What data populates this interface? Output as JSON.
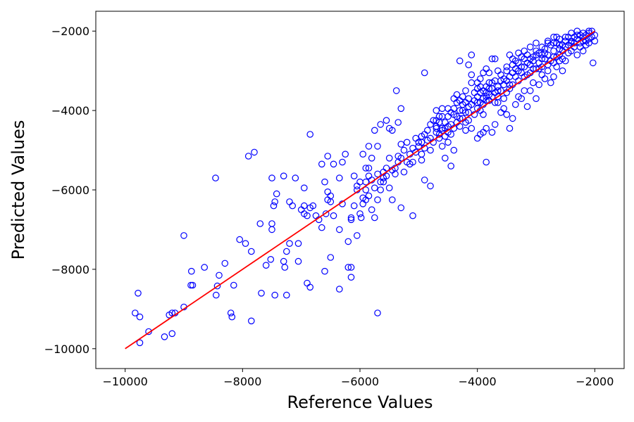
{
  "chart_data": {
    "type": "scatter",
    "title": "",
    "xlabel": "Reference Values",
    "ylabel": "Predicted Values",
    "xlim": [
      -10500,
      -1500
    ],
    "ylim": [
      -10500,
      -1500
    ],
    "xticks": [
      -10000,
      -8000,
      -6000,
      -4000,
      -2000
    ],
    "yticks": [
      -10000,
      -8000,
      -6000,
      -4000,
      -2000
    ],
    "xtick_labels": [
      "−10000",
      "−8000",
      "−6000",
      "−4000",
      "−2000"
    ],
    "ytick_labels": [
      "−10000",
      "−8000",
      "−6000",
      "−4000",
      "−2000"
    ],
    "grid": false,
    "marker_color": "#0000ff",
    "line_color": "#ff0000",
    "fit_line": {
      "x": [
        -10000,
        -2000
      ],
      "y": [
        -10000,
        -2000
      ]
    },
    "points": [
      [
        -9750,
        -9850
      ],
      [
        -9830,
        -9100
      ],
      [
        -9750,
        -9200
      ],
      [
        -9780,
        -8600
      ],
      [
        -9600,
        -9570
      ],
      [
        -9330,
        -9700
      ],
      [
        -9200,
        -9620
      ],
      [
        -9250,
        -9150
      ],
      [
        -9200,
        -9100
      ],
      [
        -9150,
        -9100
      ],
      [
        -9000,
        -8950
      ],
      [
        -9000,
        -7150
      ],
      [
        -8880,
        -8400
      ],
      [
        -8850,
        -8400
      ],
      [
        -8870,
        -8050
      ],
      [
        -8650,
        -7950
      ],
      [
        -8450,
        -8650
      ],
      [
        -8430,
        -8420
      ],
      [
        -8400,
        -8150
      ],
      [
        -8300,
        -7850
      ],
      [
        -8460,
        -5700
      ],
      [
        -8200,
        -9100
      ],
      [
        -8180,
        -9200
      ],
      [
        -8150,
        -8400
      ],
      [
        -8050,
        -7250
      ],
      [
        -7950,
        -7350
      ],
      [
        -7850,
        -7550
      ],
      [
        -7900,
        -5150
      ],
      [
        -7800,
        -5050
      ],
      [
        -7850,
        -9300
      ],
      [
        -7680,
        -8600
      ],
      [
        -7700,
        -6850
      ],
      [
        -7600,
        -7900
      ],
      [
        -7520,
        -7750
      ],
      [
        -7500,
        -7000
      ],
      [
        -7500,
        -6850
      ],
      [
        -7470,
        -6400
      ],
      [
        -7450,
        -6300
      ],
      [
        -7420,
        -6100
      ],
      [
        -7500,
        -5700
      ],
      [
        -7450,
        -8650
      ],
      [
        -7300,
        -7800
      ],
      [
        -7280,
        -7950
      ],
      [
        -7250,
        -7550
      ],
      [
        -7200,
        -7350
      ],
      [
        -7200,
        -6300
      ],
      [
        -7150,
        -6400
      ],
      [
        -7100,
        -5700
      ],
      [
        -7300,
        -5650
      ],
      [
        -7250,
        -8650
      ],
      [
        -7050,
        -7350
      ],
      [
        -7050,
        -7800
      ],
      [
        -7000,
        -6500
      ],
      [
        -6950,
        -6400
      ],
      [
        -6950,
        -6600
      ],
      [
        -6900,
        -6650
      ],
      [
        -6950,
        -5950
      ],
      [
        -6900,
        -8350
      ],
      [
        -6850,
        -8450
      ],
      [
        -6800,
        -6400
      ],
      [
        -6850,
        -6450
      ],
      [
        -6750,
        -6650
      ],
      [
        -6700,
        -6750
      ],
      [
        -6650,
        -6950
      ],
      [
        -6850,
        -4600
      ],
      [
        -6600,
        -8050
      ],
      [
        -6580,
        -6600
      ],
      [
        -6550,
        -6250
      ],
      [
        -6500,
        -6300
      ],
      [
        -6500,
        -6150
      ],
      [
        -6550,
        -6050
      ],
      [
        -6600,
        -5800
      ],
      [
        -6450,
        -5350
      ],
      [
        -6650,
        -5350
      ],
      [
        -6550,
        -5150
      ],
      [
        -6450,
        -6650
      ],
      [
        -6500,
        -7700
      ],
      [
        -6350,
        -7000
      ],
      [
        -6300,
        -6350
      ],
      [
        -6350,
        -5700
      ],
      [
        -6300,
        -5300
      ],
      [
        -6250,
        -5100
      ],
      [
        -6200,
        -7300
      ],
      [
        -6150,
        -6750
      ],
      [
        -6150,
        -6700
      ],
      [
        -6100,
        -6400
      ],
      [
        -6100,
        -5650
      ],
      [
        -6050,
        -6000
      ],
      [
        -6050,
        -7150
      ],
      [
        -6000,
        -6600
      ],
      [
        -5980,
        -6700
      ],
      [
        -5950,
        -6350
      ],
      [
        -5950,
        -6200
      ],
      [
        -5900,
        -6000
      ],
      [
        -5900,
        -5800
      ],
      [
        -5850,
        -5650
      ],
      [
        -6050,
        -5900
      ],
      [
        -6200,
        -7950
      ],
      [
        -6150,
        -7950
      ],
      [
        -6150,
        -8200
      ],
      [
        -6350,
        -8500
      ],
      [
        -5950,
        -5100
      ],
      [
        -5850,
        -4900
      ],
      [
        -5800,
        -6500
      ],
      [
        -5750,
        -6700
      ],
      [
        -5700,
        -6250
      ],
      [
        -5650,
        -6000
      ],
      [
        -5600,
        -5800
      ],
      [
        -5600,
        -5700
      ],
      [
        -5550,
        -5450
      ],
      [
        -5500,
        -5950
      ],
      [
        -5450,
        -6250
      ],
      [
        -5400,
        -5600
      ],
      [
        -5350,
        -5300
      ],
      [
        -5300,
        -5200
      ],
      [
        -5300,
        -6450
      ],
      [
        -5250,
        -5550
      ],
      [
        -5200,
        -5300
      ],
      [
        -5150,
        -5100
      ],
      [
        -5100,
        -4950
      ],
      [
        -5100,
        -6650
      ],
      [
        -5700,
        -9100
      ],
      [
        -5450,
        -4500
      ],
      [
        -5350,
        -4300
      ],
      [
        -5500,
        -4450
      ],
      [
        -5300,
        -3950
      ],
      [
        -5380,
        -3500
      ],
      [
        -5650,
        -4350
      ],
      [
        -5550,
        -4250
      ],
      [
        -5700,
        -4900
      ],
      [
        -5750,
        -4500
      ],
      [
        -5800,
        -5200
      ],
      [
        -5850,
        -5450
      ],
      [
        -5900,
        -5450
      ],
      [
        -6000,
        -5800
      ],
      [
        -5050,
        -5050
      ],
      [
        -5000,
        -4900
      ],
      [
        -4950,
        -4800
      ],
      [
        -4950,
        -5100
      ],
      [
        -4900,
        -4950
      ],
      [
        -4850,
        -4750
      ],
      [
        -4800,
        -4700
      ],
      [
        -4800,
        -5000
      ],
      [
        -4750,
        -4800
      ],
      [
        -4700,
        -4550
      ],
      [
        -4650,
        -4700
      ],
      [
        -4600,
        -4450
      ],
      [
        -4600,
        -4900
      ],
      [
        -4550,
        -5200
      ],
      [
        -4500,
        -4800
      ],
      [
        -4500,
        -4400
      ],
      [
        -4450,
        -4600
      ],
      [
        -4450,
        -5400
      ],
      [
        -4400,
        -5000
      ],
      [
        -4400,
        -4450
      ],
      [
        -4350,
        -4300
      ],
      [
        -4300,
        -4200
      ],
      [
        -4300,
        -3750
      ],
      [
        -4250,
        -4000
      ],
      [
        -4200,
        -4300
      ],
      [
        -4200,
        -4050
      ],
      [
        -4150,
        -3900
      ],
      [
        -4150,
        -3700
      ],
      [
        -4100,
        -4450
      ],
      [
        -4050,
        -4100
      ],
      [
        -4000,
        -3950
      ],
      [
        -4000,
        -3650
      ],
      [
        -3950,
        -3800
      ],
      [
        -3950,
        -3550
      ],
      [
        -3900,
        -3700
      ],
      [
        -3900,
        -3500
      ],
      [
        -3850,
        -3400
      ],
      [
        -3800,
        -3600
      ],
      [
        -3800,
        -3300
      ],
      [
        -3750,
        -3450
      ],
      [
        -3700,
        -3250
      ],
      [
        -4900,
        -3050
      ],
      [
        -4950,
        -5250
      ],
      [
        -4900,
        -5750
      ],
      [
        -4800,
        -5900
      ],
      [
        -4700,
        -4000
      ],
      [
        -4650,
        -4150
      ],
      [
        -4700,
        -4400
      ],
      [
        -4600,
        -3950
      ],
      [
        -4550,
        -4300
      ],
      [
        -4500,
        -4150
      ],
      [
        -4400,
        -3950
      ],
      [
        -4350,
        -3600
      ],
      [
        -4300,
        -2750
      ],
      [
        -4250,
        -3650
      ],
      [
        -4200,
        -3500
      ],
      [
        -4150,
        -2850
      ],
      [
        -4100,
        -3100
      ],
      [
        -4100,
        -2600
      ],
      [
        -4000,
        -3450
      ],
      [
        -4000,
        -3300
      ],
      [
        -3950,
        -3200
      ],
      [
        -3900,
        -3050
      ],
      [
        -3850,
        -2950
      ],
      [
        -3850,
        -3650
      ],
      [
        -3800,
        -3050
      ],
      [
        -3750,
        -2700
      ],
      [
        -3700,
        -2700
      ],
      [
        -3650,
        -3000
      ],
      [
        -3650,
        -3500
      ],
      [
        -3600,
        -3100
      ],
      [
        -3550,
        -3200
      ],
      [
        -3500,
        -2900
      ],
      [
        -3450,
        -3350
      ],
      [
        -3450,
        -2600
      ],
      [
        -3400,
        -3050
      ],
      [
        -3350,
        -2750
      ],
      [
        -3300,
        -3000
      ],
      [
        -3250,
        -2900
      ],
      [
        -3200,
        -3150
      ],
      [
        -3150,
        -2800
      ],
      [
        -3100,
        -2850
      ],
      [
        -3050,
        -2750
      ],
      [
        -3000,
        -2600
      ],
      [
        -3000,
        -2950
      ],
      [
        -2950,
        -2550
      ],
      [
        -2900,
        -2700
      ],
      [
        -2850,
        -2550
      ],
      [
        -2800,
        -2850
      ],
      [
        -4000,
        -4700
      ],
      [
        -3950,
        -4600
      ],
      [
        -3900,
        -4550
      ],
      [
        -3850,
        -5300
      ],
      [
        -3850,
        -4450
      ],
      [
        -3750,
        -4550
      ],
      [
        -3700,
        -4350
      ],
      [
        -3650,
        -3800
      ],
      [
        -3600,
        -4050
      ],
      [
        -3550,
        -3950
      ],
      [
        -3500,
        -4100
      ],
      [
        -3450,
        -4450
      ],
      [
        -3400,
        -4200
      ],
      [
        -3350,
        -3850
      ],
      [
        -3300,
        -3650
      ],
      [
        -3250,
        -3700
      ],
      [
        -3200,
        -3500
      ],
      [
        -3150,
        -3900
      ],
      [
        -3100,
        -3500
      ],
      [
        -3050,
        -3300
      ],
      [
        -3000,
        -3700
      ],
      [
        -2950,
        -3350
      ],
      [
        -2900,
        -3100
      ],
      [
        -2850,
        -3200
      ],
      [
        -2800,
        -3000
      ],
      [
        -2750,
        -3300
      ],
      [
        -2700,
        -3150
      ],
      [
        -2700,
        -2800
      ],
      [
        -2650,
        -2900
      ],
      [
        -2600,
        -2600
      ],
      [
        -2550,
        -3000
      ],
      [
        -2550,
        -2700
      ],
      [
        -2500,
        -2750
      ],
      [
        -2450,
        -2550
      ],
      [
        -2400,
        -2300
      ],
      [
        -2400,
        -2500
      ],
      [
        -2350,
        -2400
      ],
      [
        -2300,
        -2600
      ],
      [
        -2300,
        -2200
      ],
      [
        -2250,
        -2300
      ],
      [
        -2200,
        -2250
      ],
      [
        -2150,
        -2350
      ],
      [
        -2150,
        -2100
      ],
      [
        -2100,
        -2200
      ],
      [
        -2100,
        -2050
      ],
      [
        -2050,
        -2150
      ],
      [
        -2050,
        -2000
      ],
      [
        -2000,
        -2100
      ],
      [
        -2000,
        -2250
      ],
      [
        -2030,
        -2800
      ],
      [
        -2100,
        -2000
      ],
      [
        -2200,
        -2500
      ],
      [
        -2250,
        -2100
      ],
      [
        -2300,
        -2000
      ],
      [
        -2350,
        -2150
      ],
      [
        -2400,
        -2250
      ],
      [
        -2450,
        -2350
      ],
      [
        -2500,
        -2400
      ],
      [
        -2500,
        -2250
      ],
      [
        -2550,
        -2350
      ],
      [
        -2600,
        -2450
      ],
      [
        -2650,
        -2300
      ],
      [
        -2650,
        -2150
      ],
      [
        -2700,
        -2500
      ],
      [
        -2750,
        -2350
      ],
      [
        -2800,
        -2600
      ],
      [
        -2800,
        -2250
      ],
      [
        -2850,
        -2450
      ],
      [
        -2900,
        -2900
      ],
      [
        -2950,
        -2800
      ],
      [
        -3000,
        -2500
      ],
      [
        -3050,
        -2650
      ],
      [
        -3100,
        -2700
      ],
      [
        -3150,
        -2600
      ],
      [
        -3200,
        -2700
      ],
      [
        -3250,
        -2650
      ],
      [
        -3300,
        -2800
      ],
      [
        -3350,
        -2950
      ],
      [
        -3400,
        -2850
      ],
      [
        -3450,
        -3150
      ],
      [
        -3500,
        -3250
      ],
      [
        -3550,
        -3350
      ],
      [
        -3600,
        -3250
      ],
      [
        -3650,
        -3400
      ],
      [
        -3700,
        -3550
      ],
      [
        -3750,
        -3650
      ],
      [
        -3800,
        -3750
      ],
      [
        -3850,
        -3550
      ],
      [
        -3900,
        -3850
      ],
      [
        -3950,
        -4000
      ],
      [
        -4050,
        -3750
      ],
      [
        -4100,
        -3850
      ],
      [
        -4150,
        -4050
      ],
      [
        -4200,
        -3800
      ],
      [
        -4250,
        -4200
      ],
      [
        -4300,
        -4400
      ],
      [
        -4350,
        -4150
      ],
      [
        -4400,
        -4100
      ],
      [
        -4450,
        -4350
      ],
      [
        -4500,
        -4550
      ],
      [
        -4550,
        -4650
      ],
      [
        -4600,
        -4500
      ],
      [
        -4650,
        -4300
      ],
      [
        -4700,
        -4450
      ],
      [
        -4750,
        -4250
      ],
      [
        -4800,
        -4350
      ],
      [
        -4850,
        -4500
      ],
      [
        -4900,
        -4600
      ],
      [
        -4950,
        -4650
      ],
      [
        -5000,
        -4800
      ],
      [
        -5050,
        -4700
      ],
      [
        -5100,
        -5300
      ],
      [
        -5150,
        -5350
      ],
      [
        -5200,
        -4800
      ],
      [
        -5250,
        -5000
      ],
      [
        -5300,
        -4850
      ],
      [
        -5350,
        -5150
      ],
      [
        -5400,
        -5450
      ],
      [
        -5450,
        -5500
      ],
      [
        -5500,
        -5200
      ],
      [
        -5550,
        -5650
      ],
      [
        -5600,
        -5550
      ],
      [
        -5650,
        -5800
      ],
      [
        -5700,
        -5600
      ],
      [
        -5750,
        -5950
      ],
      [
        -5800,
        -5750
      ],
      [
        -5850,
        -6150
      ],
      [
        -5900,
        -6250
      ],
      [
        -2100,
        -2300
      ],
      [
        -2150,
        -2250
      ],
      [
        -2200,
        -2150
      ],
      [
        -2250,
        -2400
      ],
      [
        -2350,
        -2300
      ],
      [
        -2450,
        -2150
      ],
      [
        -2550,
        -2500
      ],
      [
        -2600,
        -2750
      ],
      [
        -2650,
        -2650
      ],
      [
        -2700,
        -2650
      ],
      [
        -2750,
        -2750
      ],
      [
        -2850,
        -2700
      ],
      [
        -2900,
        -2600
      ],
      [
        -2950,
        -2950
      ],
      [
        -3050,
        -2950
      ],
      [
        -3100,
        -3050
      ],
      [
        -3150,
        -3100
      ],
      [
        -3200,
        -2900
      ],
      [
        -3250,
        -3050
      ],
      [
        -3300,
        -3250
      ],
      [
        -3350,
        -3150
      ],
      [
        -3400,
        -3350
      ],
      [
        -3450,
        -3450
      ],
      [
        -3500,
        -3550
      ],
      [
        -3550,
        -3700
      ],
      [
        -3600,
        -3500
      ],
      [
        -3650,
        -3650
      ],
      [
        -3700,
        -3800
      ],
      [
        -3750,
        -3300
      ],
      [
        -3800,
        -3450
      ],
      [
        -3850,
        -3750
      ],
      [
        -3900,
        -4100
      ],
      [
        -3950,
        -3400
      ],
      [
        -4000,
        -3800
      ],
      [
        -4050,
        -3550
      ],
      [
        -4100,
        -3300
      ],
      [
        -4150,
        -4250
      ],
      [
        -4200,
        -4500
      ],
      [
        -4250,
        -3850
      ],
      [
        -4300,
        -4000
      ],
      [
        -4350,
        -3800
      ],
      [
        -4400,
        -3700
      ],
      [
        -4450,
        -4050
      ],
      [
        -4500,
        -3950
      ],
      [
        -4550,
        -4450
      ],
      [
        -4600,
        -4150
      ],
      [
        -4650,
        -4600
      ],
      [
        -4700,
        -4250
      ],
      [
        -3500,
        -3000
      ],
      [
        -3400,
        -2700
      ],
      [
        -3300,
        -2550
      ],
      [
        -3200,
        -2500
      ],
      [
        -3100,
        -2400
      ],
      [
        -3000,
        -2300
      ],
      [
        -2900,
        -2400
      ],
      [
        -2800,
        -2300
      ],
      [
        -2700,
        -2300
      ],
      [
        -2600,
        -2200
      ],
      [
        -2500,
        -2150
      ],
      [
        -2400,
        -2050
      ],
      [
        -2300,
        -2100
      ],
      [
        -2200,
        -2050
      ],
      [
        -2600,
        -2350
      ],
      [
        -2700,
        -2150
      ]
    ]
  }
}
